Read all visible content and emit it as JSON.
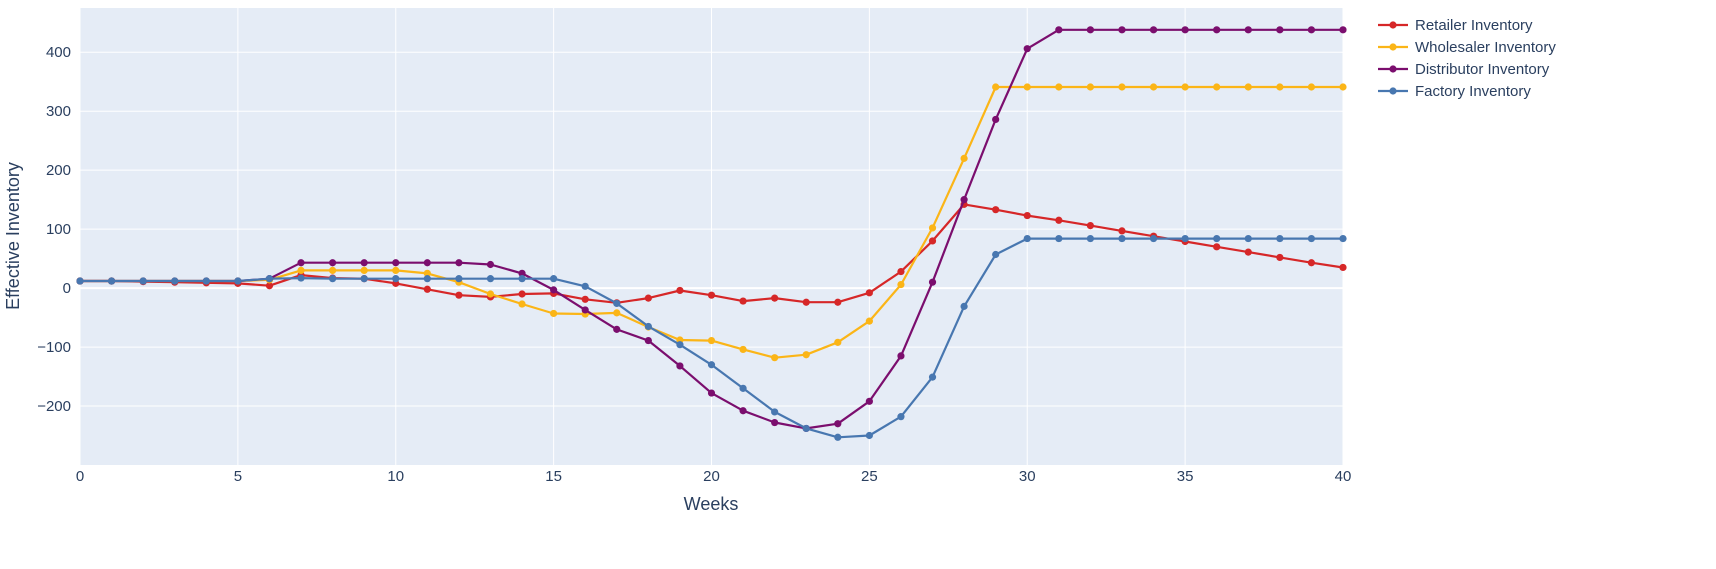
{
  "chart_data": {
    "type": "line",
    "xlabel": "Weeks",
    "ylabel": "Effective Inventory",
    "xlim": [
      0,
      40
    ],
    "ylim": [
      -300,
      475
    ],
    "xticks": [
      0,
      5,
      10,
      15,
      20,
      25,
      30,
      35,
      40
    ],
    "yticks": [
      -200,
      -100,
      0,
      100,
      200,
      300,
      400
    ],
    "ytick_labels": [
      "−200",
      "−100",
      "0",
      "100",
      "200",
      "300",
      "400"
    ],
    "grid": true,
    "legend_position": "top-right",
    "x": [
      0,
      1,
      2,
      3,
      4,
      5,
      6,
      7,
      8,
      9,
      10,
      11,
      12,
      13,
      14,
      15,
      16,
      17,
      18,
      19,
      20,
      21,
      22,
      23,
      24,
      25,
      26,
      27,
      28,
      29,
      30,
      31,
      32,
      33,
      34,
      35,
      36,
      37,
      38,
      39,
      40
    ],
    "series": [
      {
        "name": "Retailer Inventory",
        "color": "#d62728",
        "values": [
          12,
          12,
          11,
          10,
          9,
          8,
          4,
          22,
          17,
          16,
          8,
          -2,
          -12,
          -15,
          -10,
          -9,
          -19,
          -25,
          -17,
          -4,
          -12,
          -22,
          -17,
          -24,
          -24,
          -8,
          28,
          80,
          142,
          133,
          123,
          115,
          106,
          97,
          88,
          79,
          70,
          61,
          52,
          43,
          35
        ]
      },
      {
        "name": "Wholesaler Inventory",
        "color": "#fbb517",
        "values": [
          12,
          12,
          12,
          12,
          12,
          12,
          14,
          30,
          30,
          30,
          30,
          25,
          10,
          -10,
          -27,
          -43,
          -44,
          -42,
          -66,
          -88,
          -89,
          -104,
          -118,
          -113,
          -92,
          -56,
          6,
          102,
          220,
          341,
          341,
          341,
          341,
          341,
          341,
          341,
          341,
          341,
          341,
          341,
          341
        ]
      },
      {
        "name": "Distributor Inventory",
        "color": "#7b0e6e",
        "values": [
          12,
          12,
          12,
          12,
          12,
          12,
          16,
          43,
          43,
          43,
          43,
          43,
          43,
          40,
          25,
          -3,
          -37,
          -70,
          -89,
          -132,
          -178,
          -208,
          -228,
          -238,
          -230,
          -192,
          -115,
          10,
          150,
          286,
          406,
          438,
          438,
          438,
          438,
          438,
          438,
          438,
          438,
          438,
          438
        ]
      },
      {
        "name": "Factory Inventory",
        "color": "#4877b0",
        "values": [
          12,
          12,
          12,
          12,
          12,
          12,
          16,
          17,
          16,
          16,
          16,
          16,
          16,
          16,
          16,
          16,
          3,
          -26,
          -65,
          -96,
          -130,
          -170,
          -210,
          -238,
          -253,
          -250,
          -218,
          -151,
          -31,
          57,
          84,
          84,
          84,
          84,
          84,
          84,
          84,
          84,
          84,
          84,
          84
        ]
      }
    ]
  }
}
